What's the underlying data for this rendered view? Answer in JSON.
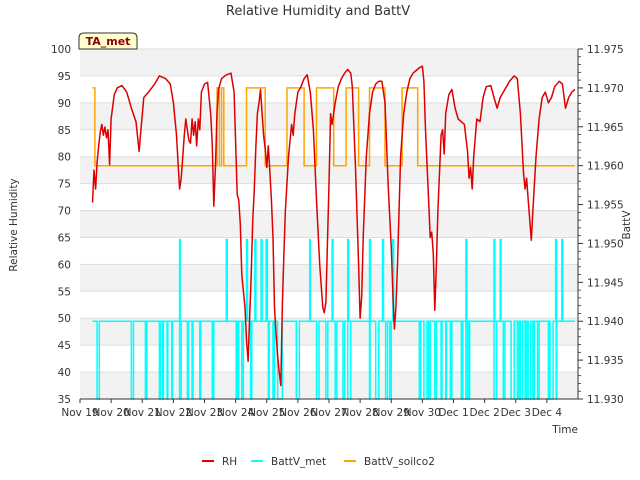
{
  "chart_data": {
    "type": "line",
    "title": "Relative Humidity and BattV",
    "xlabel": "Time",
    "ylabel": "Relative Humidity",
    "y2label": "BattV",
    "badge": "TA_met",
    "ylim": [
      35,
      100
    ],
    "y2lim": [
      11.93,
      11.975
    ],
    "xlim": [
      0,
      16
    ],
    "x_ticks": [
      {
        "x": 0,
        "label": "Nov 19"
      },
      {
        "x": 1,
        "label": "Nov 20"
      },
      {
        "x": 2,
        "label": "Nov 21"
      },
      {
        "x": 3,
        "label": "Nov 22"
      },
      {
        "x": 4,
        "label": "Nov 23"
      },
      {
        "x": 5,
        "label": "Nov 24"
      },
      {
        "x": 6,
        "label": "Nov 25"
      },
      {
        "x": 7,
        "label": "Nov 26"
      },
      {
        "x": 8,
        "label": "Nov 27"
      },
      {
        "x": 9,
        "label": "Nov 28"
      },
      {
        "x": 10,
        "label": "Nov 29"
      },
      {
        "x": 11,
        "label": "Nov 30"
      },
      {
        "x": 12,
        "label": "Dec 1"
      },
      {
        "x": 13,
        "label": "Dec 2"
      },
      {
        "x": 14,
        "label": "Dec 3"
      },
      {
        "x": 15,
        "label": "Dec 4"
      }
    ],
    "y_ticks": [
      35,
      40,
      45,
      50,
      55,
      60,
      65,
      70,
      75,
      80,
      85,
      90,
      95,
      100
    ],
    "y2_ticks": [
      "11.930",
      "11.935",
      "11.940",
      "11.945",
      "11.950",
      "11.955",
      "11.960",
      "11.965",
      "11.970",
      "11.975"
    ],
    "series": [
      {
        "name": "RH",
        "color": "#dd0000",
        "axis": "left",
        "points": [
          [
            0.4,
            71.5
          ],
          [
            0.45,
            77.5
          ],
          [
            0.5,
            74.0
          ],
          [
            0.55,
            79.0
          ],
          [
            0.6,
            82.0
          ],
          [
            0.65,
            84.5
          ],
          [
            0.7,
            86.0
          ],
          [
            0.75,
            84.0
          ],
          [
            0.8,
            85.5
          ],
          [
            0.85,
            83.5
          ],
          [
            0.9,
            85.0
          ],
          [
            0.95,
            78.5
          ],
          [
            1.0,
            87.0
          ],
          [
            1.1,
            91.5
          ],
          [
            1.2,
            92.8
          ],
          [
            1.35,
            93.2
          ],
          [
            1.5,
            92.0
          ],
          [
            1.65,
            89.0
          ],
          [
            1.8,
            86.5
          ],
          [
            1.9,
            81.0
          ],
          [
            1.95,
            84.5
          ],
          [
            2.05,
            91.0
          ],
          [
            2.2,
            92.0
          ],
          [
            2.4,
            93.5
          ],
          [
            2.55,
            95.0
          ],
          [
            2.75,
            94.5
          ],
          [
            2.9,
            93.5
          ],
          [
            3.0,
            90.0
          ],
          [
            3.1,
            84.0
          ],
          [
            3.15,
            79.0
          ],
          [
            3.2,
            74.0
          ],
          [
            3.25,
            76.0
          ],
          [
            3.35,
            84.0
          ],
          [
            3.4,
            87.0
          ],
          [
            3.5,
            83.0
          ],
          [
            3.55,
            82.5
          ],
          [
            3.6,
            87.0
          ],
          [
            3.65,
            84.0
          ],
          [
            3.7,
            86.5
          ],
          [
            3.75,
            82.0
          ],
          [
            3.8,
            87.0
          ],
          [
            3.85,
            85.0
          ],
          [
            3.9,
            92.0
          ],
          [
            4.0,
            93.5
          ],
          [
            4.1,
            93.8
          ],
          [
            4.2,
            88.0
          ],
          [
            4.25,
            82.0
          ],
          [
            4.3,
            70.8
          ],
          [
            4.35,
            78.0
          ],
          [
            4.4,
            88.0
          ],
          [
            4.45,
            92.5
          ],
          [
            4.55,
            94.5
          ],
          [
            4.7,
            95.2
          ],
          [
            4.85,
            95.5
          ],
          [
            4.95,
            92.0
          ],
          [
            5.05,
            73.0
          ],
          [
            5.1,
            72.0
          ],
          [
            5.15,
            67.5
          ],
          [
            5.2,
            58.0
          ],
          [
            5.25,
            55.0
          ],
          [
            5.3,
            52.0
          ],
          [
            5.35,
            46.0
          ],
          [
            5.4,
            42.0
          ],
          [
            5.45,
            50.0
          ],
          [
            5.5,
            58.0
          ],
          [
            5.55,
            68.0
          ],
          [
            5.6,
            74.0
          ],
          [
            5.65,
            82.0
          ],
          [
            5.7,
            88.0
          ],
          [
            5.75,
            90.0
          ],
          [
            5.8,
            92.5
          ],
          [
            5.85,
            88.0
          ],
          [
            5.9,
            84.0
          ],
          [
            5.95,
            81.5
          ],
          [
            6.0,
            78.0
          ],
          [
            6.05,
            82.0
          ],
          [
            6.1,
            77.0
          ],
          [
            6.15,
            72.0
          ],
          [
            6.2,
            65.0
          ],
          [
            6.25,
            52.0
          ],
          [
            6.3,
            47.0
          ],
          [
            6.35,
            43.0
          ],
          [
            6.4,
            40.0
          ],
          [
            6.45,
            37.5
          ],
          [
            6.5,
            52.0
          ],
          [
            6.55,
            62.0
          ],
          [
            6.6,
            70.0
          ],
          [
            6.7,
            80.0
          ],
          [
            6.8,
            86.0
          ],
          [
            6.85,
            84.0
          ],
          [
            6.9,
            88.0
          ],
          [
            7.0,
            92.0
          ],
          [
            7.1,
            93.0
          ],
          [
            7.2,
            94.5
          ],
          [
            7.3,
            95.2
          ],
          [
            7.4,
            92.0
          ],
          [
            7.5,
            85.0
          ],
          [
            7.6,
            72.0
          ],
          [
            7.7,
            60.0
          ],
          [
            7.8,
            52.0
          ],
          [
            7.85,
            51.0
          ],
          [
            7.9,
            53.0
          ],
          [
            8.0,
            75.0
          ],
          [
            8.05,
            88.0
          ],
          [
            8.1,
            86.0
          ],
          [
            8.2,
            90.0
          ],
          [
            8.3,
            93.0
          ],
          [
            8.4,
            94.5
          ],
          [
            8.5,
            95.5
          ],
          [
            8.6,
            96.2
          ],
          [
            8.7,
            95.5
          ],
          [
            8.75,
            93.0
          ],
          [
            8.85,
            78.0
          ],
          [
            8.95,
            60.0
          ],
          [
            9.0,
            50.0
          ],
          [
            9.05,
            54.0
          ],
          [
            9.1,
            65.0
          ],
          [
            9.2,
            80.0
          ],
          [
            9.3,
            88.0
          ],
          [
            9.4,
            92.0
          ],
          [
            9.5,
            93.5
          ],
          [
            9.6,
            94.0
          ],
          [
            9.7,
            94.0
          ],
          [
            9.8,
            90.0
          ],
          [
            9.9,
            75.0
          ],
          [
            10.0,
            63.0
          ],
          [
            10.05,
            55.0
          ],
          [
            10.1,
            48.0
          ],
          [
            10.15,
            52.0
          ],
          [
            10.2,
            60.0
          ],
          [
            10.3,
            80.0
          ],
          [
            10.4,
            88.0
          ],
          [
            10.5,
            92.0
          ],
          [
            10.6,
            94.5
          ],
          [
            10.7,
            95.5
          ],
          [
            10.8,
            96.0
          ],
          [
            10.9,
            96.5
          ],
          [
            11.0,
            96.8
          ],
          [
            11.05,
            94.0
          ],
          [
            11.1,
            85.0
          ],
          [
            11.2,
            72.0
          ],
          [
            11.25,
            65.0
          ],
          [
            11.3,
            66.0
          ],
          [
            11.35,
            62.0
          ],
          [
            11.4,
            51.5
          ],
          [
            11.45,
            60.0
          ],
          [
            11.5,
            70.0
          ],
          [
            11.6,
            84.0
          ],
          [
            11.65,
            85.0
          ],
          [
            11.7,
            80.5
          ],
          [
            11.75,
            88.0
          ],
          [
            11.85,
            91.5
          ],
          [
            11.95,
            92.5
          ],
          [
            12.05,
            89.0
          ],
          [
            12.15,
            87.0
          ],
          [
            12.25,
            86.5
          ],
          [
            12.35,
            86.0
          ],
          [
            12.45,
            81.0
          ],
          [
            12.5,
            76.0
          ],
          [
            12.55,
            78.0
          ],
          [
            12.6,
            74.0
          ],
          [
            12.65,
            80.0
          ],
          [
            12.75,
            87.0
          ],
          [
            12.85,
            86.5
          ],
          [
            12.95,
            91.0
          ],
          [
            13.05,
            93.0
          ],
          [
            13.2,
            93.2
          ],
          [
            13.3,
            91.0
          ],
          [
            13.4,
            89.0
          ],
          [
            13.5,
            91.0
          ],
          [
            13.65,
            92.5
          ],
          [
            13.8,
            94.0
          ],
          [
            13.95,
            95.0
          ],
          [
            14.05,
            94.5
          ],
          [
            14.15,
            88.0
          ],
          [
            14.25,
            77.0
          ],
          [
            14.3,
            74.0
          ],
          [
            14.35,
            76.0
          ],
          [
            14.4,
            72.0
          ],
          [
            14.5,
            64.5
          ],
          [
            14.55,
            70.0
          ],
          [
            14.65,
            80.0
          ],
          [
            14.75,
            87.0
          ],
          [
            14.85,
            91.0
          ],
          [
            14.95,
            92.0
          ],
          [
            15.05,
            90.0
          ],
          [
            15.15,
            91.0
          ],
          [
            15.25,
            93.0
          ],
          [
            15.4,
            94.0
          ],
          [
            15.5,
            93.5
          ],
          [
            15.6,
            89.0
          ],
          [
            15.7,
            91.0
          ],
          [
            15.8,
            92.0
          ],
          [
            15.9,
            92.5
          ]
        ]
      },
      {
        "name": "BattV_met",
        "color": "#00ffff",
        "axis": "right",
        "base": 11.94,
        "low": 11.93,
        "high": 11.9505,
        "drops": [
          [
            0.55,
            0.62
          ],
          [
            1.65,
            1.72
          ],
          [
            2.1,
            2.15
          ],
          [
            2.55,
            2.58
          ],
          [
            2.65,
            2.68
          ],
          [
            2.8,
            2.82
          ],
          [
            2.95,
            2.97
          ],
          [
            3.2,
            3.25
          ],
          [
            3.45,
            3.48
          ],
          [
            3.6,
            3.63
          ],
          [
            3.85,
            3.88
          ],
          [
            4.25,
            4.3
          ],
          [
            5.02,
            5.04
          ],
          [
            5.08,
            5.1
          ],
          [
            5.2,
            5.25
          ],
          [
            5.48,
            5.52
          ],
          [
            6.05,
            6.08
          ],
          [
            6.2,
            6.25
          ],
          [
            6.35,
            6.5
          ],
          [
            6.95,
            7.05
          ],
          [
            7.6,
            7.68
          ],
          [
            7.9,
            7.96
          ],
          [
            8.2,
            8.25
          ],
          [
            8.45,
            8.5
          ],
          [
            8.6,
            8.7
          ],
          [
            9.3,
            9.32
          ],
          [
            9.5,
            9.6
          ],
          [
            9.82,
            9.88
          ],
          [
            9.95,
            10.0
          ],
          [
            10.9,
            10.95
          ],
          [
            11.05,
            11.15
          ],
          [
            11.2,
            11.25
          ],
          [
            11.4,
            11.45
          ],
          [
            11.6,
            11.63
          ],
          [
            11.75,
            11.77
          ],
          [
            11.9,
            11.95
          ],
          [
            12.25,
            12.3
          ],
          [
            12.4,
            12.45
          ],
          [
            12.5,
            12.52
          ],
          [
            13.3,
            13.38
          ],
          [
            13.6,
            13.65
          ],
          [
            13.85,
            13.95
          ],
          [
            14.05,
            14.1
          ],
          [
            14.15,
            14.22
          ],
          [
            14.3,
            14.35
          ],
          [
            14.4,
            14.48
          ],
          [
            14.55,
            14.6
          ],
          [
            14.7,
            14.75
          ],
          [
            15.05,
            15.08
          ],
          [
            15.1,
            15.2
          ],
          [
            15.3,
            15.32
          ]
        ],
        "spikes": [
          [
            3.2,
            3.22
          ],
          [
            4.7,
            4.73
          ],
          [
            5.35,
            5.38
          ],
          [
            5.62,
            5.65
          ],
          [
            5.82,
            5.85
          ],
          [
            5.98,
            6.02
          ],
          [
            7.38,
            7.4
          ],
          [
            8.1,
            8.13
          ],
          [
            8.6,
            8.63
          ],
          [
            9.3,
            9.33
          ],
          [
            9.72,
            9.75
          ],
          [
            10.05,
            10.08
          ],
          [
            12.4,
            12.43
          ],
          [
            13.3,
            13.33
          ],
          [
            13.5,
            13.53
          ],
          [
            15.28,
            15.31
          ],
          [
            15.48,
            15.51
          ]
        ]
      },
      {
        "name": "BattV_soilco2",
        "color": "#ffa500",
        "axis": "right",
        "steps": [
          [
            0.4,
            11.97
          ],
          [
            0.48,
            11.96
          ],
          [
            4.4,
            11.97
          ],
          [
            4.48,
            11.96
          ],
          [
            4.55,
            11.97
          ],
          [
            4.62,
            11.96
          ],
          [
            5.35,
            11.97
          ],
          [
            5.95,
            11.96
          ],
          [
            6.65,
            11.97
          ],
          [
            7.2,
            11.96
          ],
          [
            7.6,
            11.97
          ],
          [
            8.15,
            11.96
          ],
          [
            8.55,
            11.97
          ],
          [
            8.95,
            11.96
          ],
          [
            9.3,
            11.97
          ],
          [
            9.8,
            11.96
          ],
          [
            10.35,
            11.97
          ],
          [
            10.85,
            11.96
          ],
          [
            15.9,
            11.96
          ]
        ]
      }
    ]
  }
}
